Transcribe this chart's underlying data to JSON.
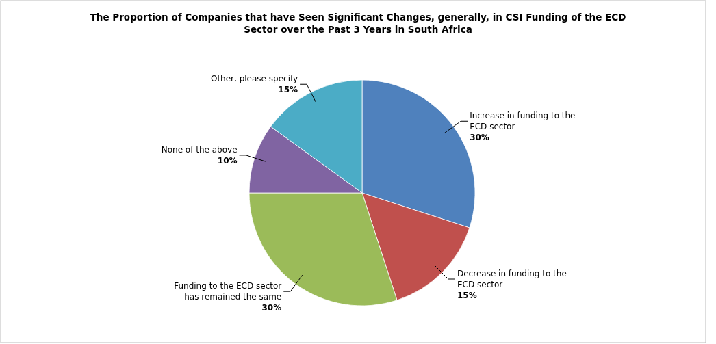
{
  "chart_data": {
    "type": "pie",
    "title": "The Proportion of Companies that have Seen Significant Changes, generally, in CSI Funding of the ECD Sector over the Past 3 Years in South Africa",
    "categories": [
      "Increase in funding to the ECD sector",
      "Decrease in funding to the ECD sector",
      "Funding to the ECD sector has remained the same",
      "None of the above",
      "Other, please specify"
    ],
    "values": [
      30,
      15,
      30,
      10,
      15
    ],
    "colors": [
      "#4f81bd",
      "#c0504d",
      "#9bbb59",
      "#8064a2",
      "#4bacc6"
    ],
    "value_labels": [
      "30%",
      "15%",
      "30%",
      "10%",
      "15%"
    ],
    "legend": false
  }
}
